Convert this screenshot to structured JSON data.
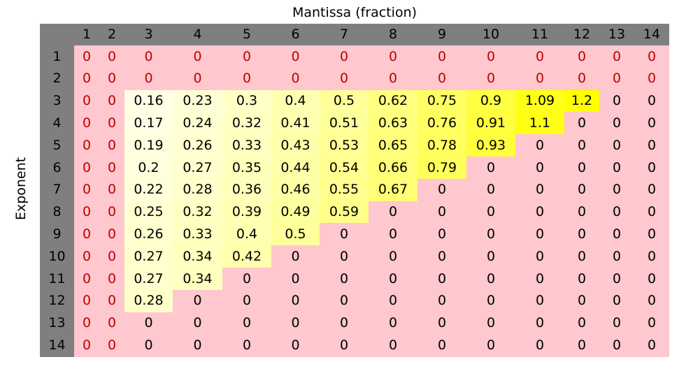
{
  "chart_data": {
    "type": "heatmap",
    "title": "Mantissa (fraction)",
    "xlabel": "Mantissa (fraction)",
    "ylabel": "Exponent",
    "x_categories": [
      "1",
      "2",
      "3",
      "4",
      "5",
      "6",
      "7",
      "8",
      "9",
      "10",
      "11",
      "12",
      "13",
      "14"
    ],
    "y_categories": [
      "1",
      "2",
      "3",
      "4",
      "5",
      "6",
      "7",
      "8",
      "9",
      "10",
      "11",
      "12",
      "13",
      "14"
    ],
    "values": [
      [
        0,
        0,
        0,
        0,
        0,
        0,
        0,
        0,
        0,
        0,
        0,
        0,
        0,
        0
      ],
      [
        0,
        0,
        0,
        0,
        0,
        0,
        0,
        0,
        0,
        0,
        0,
        0,
        0,
        0
      ],
      [
        0,
        0,
        0.16,
        0.23,
        0.3,
        0.4,
        0.5,
        0.62,
        0.75,
        0.9,
        1.09,
        1.2,
        0,
        0
      ],
      [
        0,
        0,
        0.17,
        0.24,
        0.32,
        0.41,
        0.51,
        0.63,
        0.76,
        0.91,
        1.1,
        0,
        0,
        0
      ],
      [
        0,
        0,
        0.19,
        0.26,
        0.33,
        0.43,
        0.53,
        0.65,
        0.78,
        0.93,
        0,
        0,
        0,
        0
      ],
      [
        0,
        0,
        0.2,
        0.27,
        0.35,
        0.44,
        0.54,
        0.66,
        0.79,
        0,
        0,
        0,
        0,
        0
      ],
      [
        0,
        0,
        0.22,
        0.28,
        0.36,
        0.46,
        0.55,
        0.67,
        0,
        0,
        0,
        0,
        0,
        0
      ],
      [
        0,
        0,
        0.25,
        0.32,
        0.39,
        0.49,
        0.59,
        0,
        0,
        0,
        0,
        0,
        0,
        0
      ],
      [
        0,
        0,
        0.26,
        0.33,
        0.4,
        0.5,
        0,
        0,
        0,
        0,
        0,
        0,
        0,
        0
      ],
      [
        0,
        0,
        0.27,
        0.34,
        0.42,
        0,
        0,
        0,
        0,
        0,
        0,
        0,
        0,
        0
      ],
      [
        0,
        0,
        0.27,
        0.34,
        0,
        0,
        0,
        0,
        0,
        0,
        0,
        0,
        0,
        0
      ],
      [
        0,
        0,
        0.28,
        0,
        0,
        0,
        0,
        0,
        0,
        0,
        0,
        0,
        0,
        0
      ],
      [
        0,
        0,
        0,
        0,
        0,
        0,
        0,
        0,
        0,
        0,
        0,
        0,
        0,
        0
      ],
      [
        0,
        0,
        0,
        0,
        0,
        0,
        0,
        0,
        0,
        0,
        0,
        0,
        0,
        0
      ]
    ],
    "colors": {
      "header": "#7f7f7f",
      "zero_background": "#ffc7ce",
      "zero_text_red": "#c00000",
      "low": "#ffffe6",
      "high": "#ffff00"
    },
    "color_range": [
      0.16,
      1.2
    ]
  }
}
